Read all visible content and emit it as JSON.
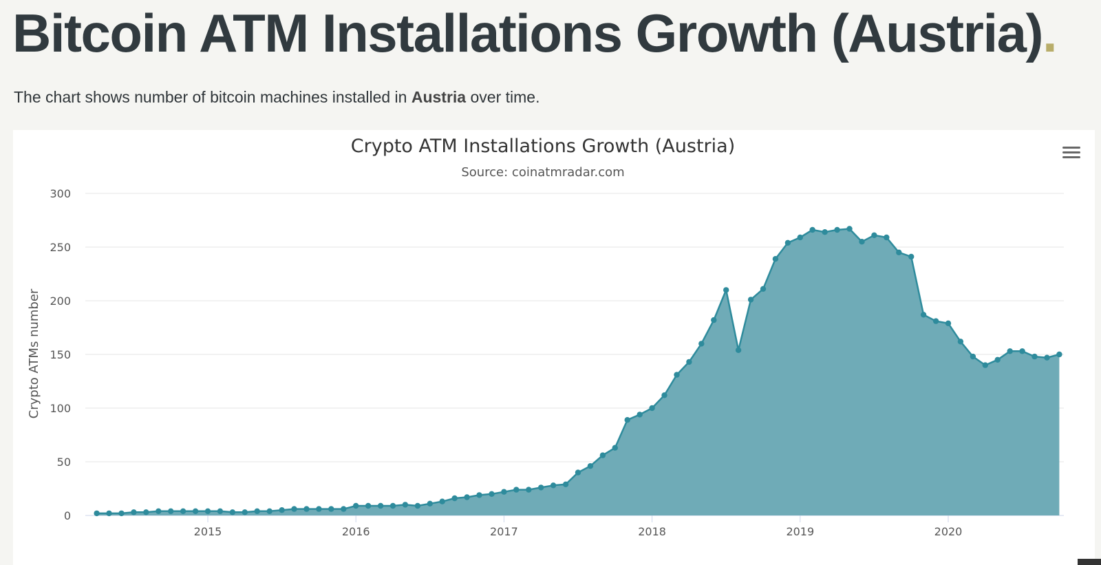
{
  "page": {
    "title": "Bitcoin ATM Installations Growth (Austria)",
    "title_dot": ".",
    "intro_before": "The chart shows number of bitcoin machines installed in ",
    "intro_country": "Austria",
    "intro_after": " over time."
  },
  "colors": {
    "title": "#313a3f",
    "accent_dot": "#b8ad6a",
    "series_line": "#2e8b9c",
    "series_fill": "#6fabb7",
    "grid": "#e6e6e6"
  },
  "chart_data": {
    "type": "area",
    "title": "Crypto ATM Installations Growth (Austria)",
    "subtitle": "Source: coinatmradar.com",
    "xlabel": "",
    "ylabel": "Crypto ATMs number",
    "ylim": [
      0,
      300
    ],
    "yticks": [
      "0",
      "50",
      "100",
      "150",
      "200",
      "250",
      "300"
    ],
    "xticks": [
      "2015",
      "2016",
      "2017",
      "2018",
      "2019",
      "2020"
    ],
    "grid": true,
    "legend": "none",
    "x": [
      "2014-04",
      "2014-05",
      "2014-06",
      "2014-07",
      "2014-08",
      "2014-09",
      "2014-10",
      "2014-11",
      "2014-12",
      "2015-01",
      "2015-02",
      "2015-03",
      "2015-04",
      "2015-05",
      "2015-06",
      "2015-07",
      "2015-08",
      "2015-09",
      "2015-10",
      "2015-11",
      "2015-12",
      "2016-01",
      "2016-02",
      "2016-03",
      "2016-04",
      "2016-05",
      "2016-06",
      "2016-07",
      "2016-08",
      "2016-09",
      "2016-10",
      "2016-11",
      "2016-12",
      "2017-01",
      "2017-02",
      "2017-03",
      "2017-04",
      "2017-05",
      "2017-06",
      "2017-07",
      "2017-08",
      "2017-09",
      "2017-10",
      "2017-11",
      "2017-12",
      "2018-01",
      "2018-02",
      "2018-03",
      "2018-04",
      "2018-05",
      "2018-06",
      "2018-07",
      "2018-08",
      "2018-09",
      "2018-10",
      "2018-11",
      "2018-12",
      "2019-01",
      "2019-02",
      "2019-03",
      "2019-04",
      "2019-05",
      "2019-06",
      "2019-07",
      "2019-08",
      "2019-09",
      "2019-10",
      "2019-11",
      "2019-12",
      "2020-01",
      "2020-02",
      "2020-03",
      "2020-04",
      "2020-05",
      "2020-06",
      "2020-07",
      "2020-08",
      "2020-09",
      "2020-10",
      "2020-11"
    ],
    "series": [
      {
        "values": [
          2,
          2,
          2,
          3,
          3,
          4,
          4,
          4,
          4,
          4,
          4,
          3,
          3,
          4,
          4,
          5,
          6,
          6,
          6,
          6,
          6,
          9,
          9,
          9,
          9,
          10,
          9,
          11,
          13,
          16,
          17,
          19,
          20,
          22,
          24,
          24,
          26,
          28,
          29,
          40,
          46,
          56,
          63,
          89,
          94,
          100,
          112,
          131,
          143,
          160,
          182,
          210,
          154,
          201,
          211,
          239,
          254,
          259,
          266,
          264,
          266,
          267,
          255,
          261,
          259,
          245,
          241,
          187,
          181,
          179,
          162,
          148,
          140,
          145,
          153,
          153,
          148,
          147,
          150,
          null
        ]
      }
    ]
  }
}
